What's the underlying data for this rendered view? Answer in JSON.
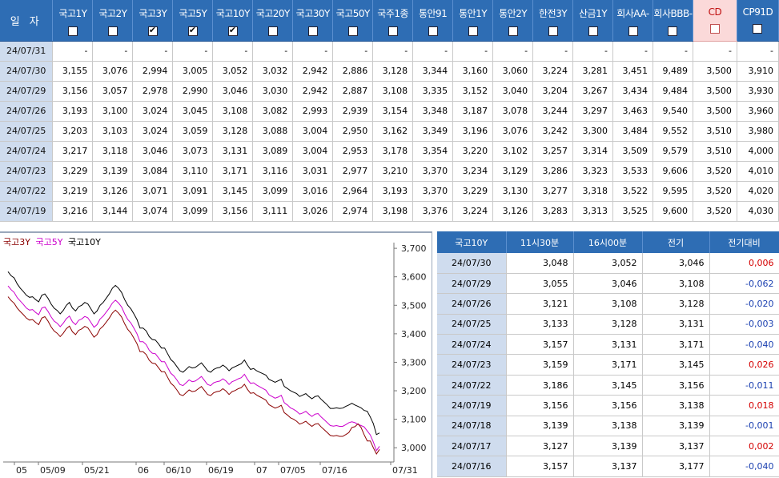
{
  "grid": {
    "date_header": "일 자",
    "columns": [
      {
        "label": "국고1Y",
        "checked": false
      },
      {
        "label": "국고2Y",
        "checked": false
      },
      {
        "label": "국고3Y",
        "checked": true
      },
      {
        "label": "국고5Y",
        "checked": true
      },
      {
        "label": "국고10Y",
        "checked": true
      },
      {
        "label": "국고20Y",
        "checked": false
      },
      {
        "label": "국고30Y",
        "checked": false
      },
      {
        "label": "국고50Y",
        "checked": false
      },
      {
        "label": "국주1종",
        "checked": false
      },
      {
        "label": "통안91",
        "checked": false
      },
      {
        "label": "통안1Y",
        "checked": false
      },
      {
        "label": "통안2Y",
        "checked": false
      },
      {
        "label": "한전3Y",
        "checked": false
      },
      {
        "label": "산금1Y",
        "checked": false
      },
      {
        "label": "회사AA-",
        "checked": false
      },
      {
        "label": "회사BBB-",
        "checked": false
      },
      {
        "label": "CD",
        "checked": false
      },
      {
        "label": "CP91D",
        "checked": false
      }
    ],
    "rows": [
      {
        "date": "24/07/31",
        "values": [
          "-",
          "-",
          "-",
          "-",
          "-",
          "-",
          "-",
          "-",
          "-",
          "-",
          "-",
          "-",
          "-",
          "-",
          "-",
          "-",
          "-",
          "-"
        ]
      },
      {
        "date": "24/07/30",
        "values": [
          "3,155",
          "3,076",
          "2,994",
          "3,005",
          "3,052",
          "3,032",
          "2,942",
          "2,886",
          "3,128",
          "3,344",
          "3,160",
          "3,060",
          "3,224",
          "3,281",
          "3,451",
          "9,489",
          "3,500",
          "3,910"
        ]
      },
      {
        "date": "24/07/29",
        "values": [
          "3,156",
          "3,057",
          "2,978",
          "2,990",
          "3,046",
          "3,030",
          "2,942",
          "2,887",
          "3,108",
          "3,335",
          "3,152",
          "3,040",
          "3,204",
          "3,267",
          "3,434",
          "9,484",
          "3,500",
          "3,930"
        ]
      },
      {
        "date": "24/07/26",
        "values": [
          "3,193",
          "3,100",
          "3,024",
          "3,045",
          "3,108",
          "3,082",
          "2,993",
          "2,939",
          "3,154",
          "3,348",
          "3,187",
          "3,078",
          "3,244",
          "3,297",
          "3,463",
          "9,540",
          "3,500",
          "3,960"
        ]
      },
      {
        "date": "24/07/25",
        "values": [
          "3,203",
          "3,103",
          "3,024",
          "3,059",
          "3,128",
          "3,088",
          "3,004",
          "2,950",
          "3,162",
          "3,349",
          "3,196",
          "3,076",
          "3,242",
          "3,300",
          "3,484",
          "9,552",
          "3,510",
          "3,980"
        ]
      },
      {
        "date": "24/07/24",
        "values": [
          "3,217",
          "3,118",
          "3,046",
          "3,073",
          "3,131",
          "3,089",
          "3,004",
          "2,953",
          "3,178",
          "3,354",
          "3,220",
          "3,102",
          "3,257",
          "3,314",
          "3,509",
          "9,579",
          "3,510",
          "4,000"
        ]
      },
      {
        "date": "24/07/23",
        "values": [
          "3,229",
          "3,139",
          "3,084",
          "3,110",
          "3,171",
          "3,116",
          "3,031",
          "2,977",
          "3,210",
          "3,370",
          "3,234",
          "3,129",
          "3,286",
          "3,323",
          "3,533",
          "9,606",
          "3,520",
          "4,010"
        ]
      },
      {
        "date": "24/07/22",
        "values": [
          "3,219",
          "3,126",
          "3,071",
          "3,091",
          "3,145",
          "3,099",
          "3,016",
          "2,964",
          "3,193",
          "3,370",
          "3,229",
          "3,130",
          "3,277",
          "3,318",
          "3,522",
          "9,595",
          "3,520",
          "4,020"
        ]
      },
      {
        "date": "24/07/19",
        "values": [
          "3,216",
          "3,144",
          "3,074",
          "3,099",
          "3,156",
          "3,111",
          "3,026",
          "2,974",
          "3,198",
          "3,376",
          "3,224",
          "3,126",
          "3,283",
          "3,313",
          "3,525",
          "9,600",
          "3,520",
          "4,030"
        ]
      }
    ]
  },
  "chart_data": {
    "type": "line",
    "legend": [
      "국고3Y",
      "국고5Y",
      "국고10Y"
    ],
    "colors": {
      "국고3Y": "#8b0000",
      "국고5Y": "#cc00cc",
      "국고10Y": "#000000"
    },
    "y_ticks": [
      "3,700",
      "3,600",
      "3,500",
      "3,400",
      "3,300",
      "3,200",
      "3,100",
      "3,000"
    ],
    "ylim": [
      2950,
      3720
    ],
    "x_ticks": [
      "05",
      "05/09",
      "05/21",
      "06",
      "06/10",
      "06/19",
      "07",
      "07/05",
      "07/16",
      "07/31"
    ],
    "series": [
      {
        "name": "국고10Y",
        "values": [
          3618,
          3604,
          3596,
          3575,
          3560,
          3548,
          3535,
          3528,
          3530,
          3520,
          3512,
          3535,
          3540,
          3525,
          3505,
          3490,
          3482,
          3470,
          3482,
          3500,
          3510,
          3490,
          3480,
          3495,
          3500,
          3510,
          3505,
          3488,
          3470,
          3480,
          3500,
          3510,
          3525,
          3540,
          3560,
          3570,
          3560,
          3545,
          3520,
          3500,
          3488,
          3470,
          3450,
          3420,
          3420,
          3410,
          3390,
          3380,
          3378,
          3365,
          3350,
          3350,
          3330,
          3310,
          3300,
          3285,
          3270,
          3265,
          3275,
          3285,
          3280,
          3282,
          3290,
          3298,
          3285,
          3270,
          3265,
          3275,
          3280,
          3282,
          3290,
          3282,
          3270,
          3280,
          3285,
          3290,
          3295,
          3308,
          3290,
          3275,
          3278,
          3270,
          3265,
          3260,
          3255,
          3240,
          3235,
          3230,
          3235,
          3240,
          3215,
          3208,
          3200,
          3195,
          3190,
          3180,
          3185,
          3190,
          3180,
          3172,
          3180,
          3182,
          3170,
          3160,
          3150,
          3138,
          3138,
          3140,
          3138,
          3139,
          3145,
          3150,
          3156,
          3150,
          3145,
          3140,
          3131,
          3128,
          3108,
          3085,
          3046,
          3052
        ]
      },
      {
        "name": "국고5Y",
        "values": [
          3568,
          3555,
          3545,
          3527,
          3515,
          3503,
          3490,
          3483,
          3485,
          3475,
          3467,
          3490,
          3494,
          3479,
          3460,
          3445,
          3437,
          3425,
          3437,
          3453,
          3462,
          3442,
          3432,
          3447,
          3452,
          3461,
          3456,
          3440,
          3423,
          3432,
          3452,
          3462,
          3476,
          3490,
          3508,
          3518,
          3508,
          3494,
          3470,
          3450,
          3438,
          3420,
          3400,
          3372,
          3372,
          3362,
          3342,
          3332,
          3330,
          3316,
          3302,
          3302,
          3282,
          3262,
          3252,
          3238,
          3222,
          3218,
          3228,
          3238,
          3232,
          3234,
          3242,
          3250,
          3236,
          3222,
          3218,
          3228,
          3232,
          3234,
          3242,
          3234,
          3222,
          3232,
          3236,
          3242,
          3246,
          3258,
          3240,
          3226,
          3228,
          3220,
          3214,
          3208,
          3202,
          3186,
          3180,
          3174,
          3178,
          3184,
          3158,
          3150,
          3140,
          3135,
          3128,
          3118,
          3122,
          3128,
          3118,
          3110,
          3118,
          3120,
          3108,
          3098,
          3088,
          3078,
          3076,
          3078,
          3075,
          3075,
          3081,
          3088,
          3091,
          3088,
          3082,
          3078,
          3073,
          3059,
          3045,
          3020,
          2990,
          3005
        ]
      },
      {
        "name": "국고3Y",
        "values": [
          3530,
          3517,
          3507,
          3490,
          3478,
          3467,
          3455,
          3448,
          3450,
          3440,
          3432,
          3455,
          3460,
          3445,
          3425,
          3410,
          3402,
          3390,
          3402,
          3418,
          3427,
          3407,
          3397,
          3412,
          3417,
          3426,
          3421,
          3405,
          3388,
          3397,
          3417,
          3427,
          3441,
          3455,
          3473,
          3483,
          3473,
          3459,
          3435,
          3415,
          3403,
          3385,
          3365,
          3337,
          3337,
          3327,
          3307,
          3297,
          3295,
          3281,
          3267,
          3267,
          3247,
          3227,
          3217,
          3203,
          3187,
          3183,
          3193,
          3203,
          3197,
          3199,
          3207,
          3215,
          3201,
          3187,
          3183,
          3193,
          3197,
          3199,
          3207,
          3199,
          3187,
          3197,
          3201,
          3207,
          3211,
          3223,
          3205,
          3191,
          3193,
          3185,
          3179,
          3173,
          3167,
          3151,
          3145,
          3139,
          3143,
          3149,
          3123,
          3115,
          3105,
          3100,
          3093,
          3083,
          3087,
          3093,
          3083,
          3075,
          3083,
          3085,
          3073,
          3063,
          3053,
          3043,
          3041,
          3043,
          3040,
          3040,
          3046,
          3053,
          3071,
          3074,
          3084,
          3071,
          3046,
          3024,
          3024,
          3000,
          2978,
          2994
        ]
      }
    ]
  },
  "side_table": {
    "headers": [
      "국고10Y",
      "11시30분",
      "16시00분",
      "전기",
      "전기대비"
    ],
    "rows": [
      {
        "date": "24/07/30",
        "v1": "3,048",
        "v2": "3,052",
        "prev": "3,046",
        "diff": "0,006",
        "sign": "pos"
      },
      {
        "date": "24/07/29",
        "v1": "3,055",
        "v2": "3,046",
        "prev": "3,108",
        "diff": "-0,062",
        "sign": "neg"
      },
      {
        "date": "24/07/26",
        "v1": "3,121",
        "v2": "3,108",
        "prev": "3,128",
        "diff": "-0,020",
        "sign": "neg"
      },
      {
        "date": "24/07/25",
        "v1": "3,133",
        "v2": "3,128",
        "prev": "3,131",
        "diff": "-0,003",
        "sign": "neg"
      },
      {
        "date": "24/07/24",
        "v1": "3,157",
        "v2": "3,131",
        "prev": "3,171",
        "diff": "-0,040",
        "sign": "neg"
      },
      {
        "date": "24/07/23",
        "v1": "3,159",
        "v2": "3,171",
        "prev": "3,145",
        "diff": "0,026",
        "sign": "pos"
      },
      {
        "date": "24/07/22",
        "v1": "3,186",
        "v2": "3,145",
        "prev": "3,156",
        "diff": "-0,011",
        "sign": "neg"
      },
      {
        "date": "24/07/19",
        "v1": "3,156",
        "v2": "3,156",
        "prev": "3,138",
        "diff": "0,018",
        "sign": "pos"
      },
      {
        "date": "24/07/18",
        "v1": "3,139",
        "v2": "3,138",
        "prev": "3,139",
        "diff": "-0,001",
        "sign": "neg"
      },
      {
        "date": "24/07/17",
        "v1": "3,127",
        "v2": "3,139",
        "prev": "3,137",
        "diff": "0,002",
        "sign": "pos"
      },
      {
        "date": "24/07/16",
        "v1": "3,157",
        "v2": "3,137",
        "prev": "3,177",
        "diff": "-0,040",
        "sign": "neg"
      }
    ]
  }
}
